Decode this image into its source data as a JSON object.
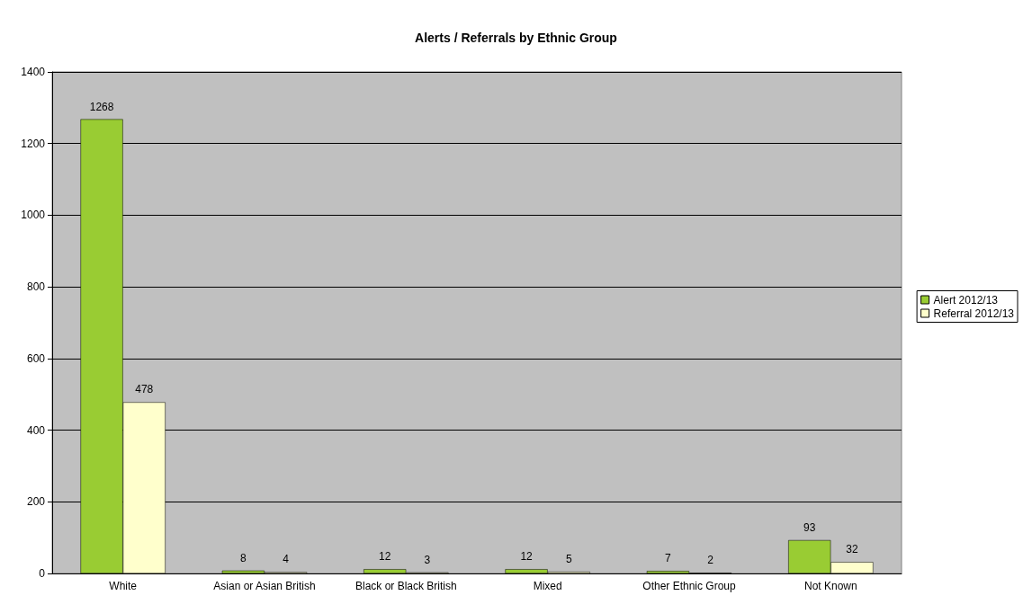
{
  "chart_data": {
    "type": "bar",
    "title": "Alerts / Referrals by Ethnic Group",
    "categories": [
      "White",
      "Asian or Asian British",
      "Black or Black British",
      "Mixed",
      "Other Ethnic Group",
      "Not Known"
    ],
    "series": [
      {
        "name": "Alert 2012/13",
        "color": "#99cc33",
        "values": [
          1268,
          8,
          12,
          12,
          7,
          93
        ]
      },
      {
        "name": "Referral 2012/13",
        "color": "#ffffcc",
        "values": [
          478,
          4,
          3,
          5,
          2,
          32
        ]
      }
    ],
    "ylim": [
      0,
      1400
    ],
    "yticks": [
      0,
      200,
      400,
      600,
      800,
      1000,
      1200,
      1400
    ],
    "grid": "y",
    "legend": "right",
    "data_labels": true
  }
}
